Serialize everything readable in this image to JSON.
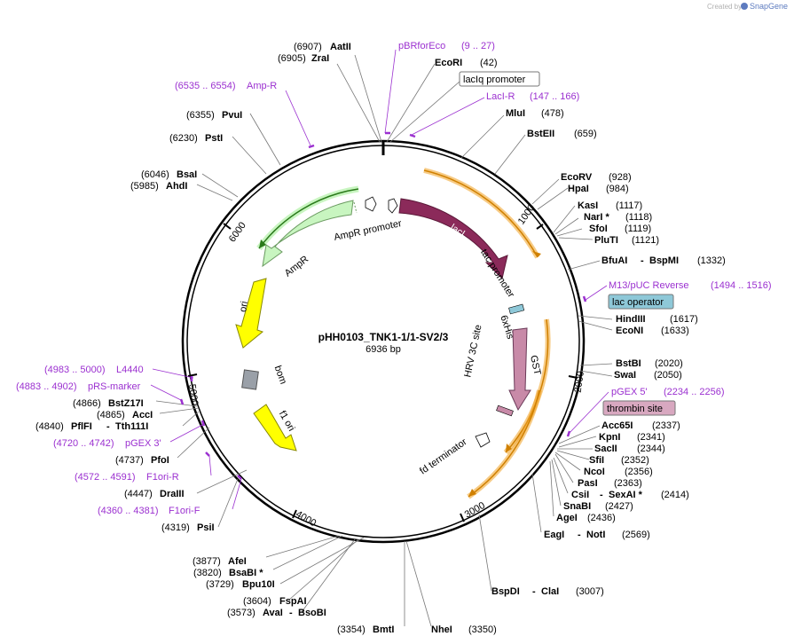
{
  "plasmid": {
    "name": "pHH0103_TNK1-1/1-SV2/3",
    "length": "6936 bp"
  },
  "branding": {
    "created_by": "Created by",
    "app": "SnapGene"
  },
  "ticks": [
    "1000",
    "2000",
    "3000",
    "4000",
    "5000",
    "6000"
  ],
  "colors": {
    "primer": "#9b30d0",
    "laci": "#8b2a5a",
    "amp": "#c8f5c0",
    "ori": "#ffff00",
    "gst": "#c88aa8",
    "orf": "#f0a020",
    "lac_operator": "#8ec8d8",
    "thrombin_site": "#d8a8c0"
  },
  "features": {
    "laci": "lacI",
    "ampr": "AmpR",
    "ampr_promoter": "AmpR promoter",
    "tac_promoter": "tac promoter",
    "his": "6xHis",
    "hrv": "HRV 3C site",
    "gst": "GST",
    "ori": "ori",
    "bom": "bom",
    "f1ori": "f1 ori",
    "fd_terminator": "fd terminator",
    "laciq_promoter": "lacIq promoter",
    "lac_operator": "lac operator",
    "thrombin_site": "thrombin site"
  },
  "enzymes": [
    {
      "pos": "(6907)",
      "name": "AatII"
    },
    {
      "pos": "(6905)",
      "name": "ZraI"
    },
    {
      "pos": "",
      "name": "EcoRI",
      "pos2": "(42)"
    },
    {
      "pos": "",
      "name": "MluI",
      "pos2": "(478)"
    },
    {
      "pos": "",
      "name": "BstEII",
      "pos2": "(659)"
    },
    {
      "pos": "",
      "name": "EcoRV",
      "pos2": "(928)"
    },
    {
      "pos": "",
      "name": "HpaI",
      "pos2": "(984)"
    },
    {
      "pos": "",
      "name": "KasI",
      "pos2": "(1117)"
    },
    {
      "pos": "",
      "name": "NarI *",
      "pos2": "(1118)"
    },
    {
      "pos": "",
      "name": "SfoI",
      "pos2": "(1119)"
    },
    {
      "pos": "",
      "name": "PluTI",
      "pos2": "(1121)"
    },
    {
      "pos": "",
      "name": "BfuAI",
      "name2": "BspMI",
      "pos2": "(1332)"
    },
    {
      "pos": "",
      "name": "HindIII",
      "pos2": "(1617)"
    },
    {
      "pos": "",
      "name": "EcoNI",
      "pos2": "(1633)"
    },
    {
      "pos": "",
      "name": "BstBI",
      "pos2": "(2020)"
    },
    {
      "pos": "",
      "name": "SwaI",
      "pos2": "(2050)"
    },
    {
      "pos": "",
      "name": "Acc65I",
      "pos2": "(2337)"
    },
    {
      "pos": "",
      "name": "KpnI",
      "pos2": "(2341)"
    },
    {
      "pos": "",
      "name": "SacII",
      "pos2": "(2344)"
    },
    {
      "pos": "",
      "name": "SfiI",
      "pos2": "(2352)"
    },
    {
      "pos": "",
      "name": "NcoI",
      "pos2": "(2356)"
    },
    {
      "pos": "",
      "name": "PasI",
      "pos2": "(2363)"
    },
    {
      "pos": "",
      "name": "CsiI",
      "name2": "SexAI *",
      "pos2": "(2414)"
    },
    {
      "pos": "",
      "name": "SnaBI",
      "pos2": "(2427)"
    },
    {
      "pos": "",
      "name": "AgeI",
      "pos2": "(2436)"
    },
    {
      "pos": "",
      "name": "EagI",
      "name2": "NotI",
      "pos2": "(2569)"
    },
    {
      "pos": "",
      "name": "BspDI",
      "name2": "ClaI",
      "pos2": "(3007)"
    },
    {
      "pos": "",
      "name": "NheI",
      "pos2": "(3350)"
    },
    {
      "pos": "(3354)",
      "name": "BmtI"
    },
    {
      "pos": "(3573)",
      "name": "AvaI",
      "name2": "BsoBI"
    },
    {
      "pos": "(3604)",
      "name": "FspAI"
    },
    {
      "pos": "(3729)",
      "name": "Bpu10I"
    },
    {
      "pos": "(3820)",
      "name": "BsaBI *"
    },
    {
      "pos": "(3877)",
      "name": "AfeI"
    },
    {
      "pos": "(4319)",
      "name": "PsiI"
    },
    {
      "pos": "(4447)",
      "name": "DraIII"
    },
    {
      "pos": "(4737)",
      "name": "PfoI"
    },
    {
      "pos": "(4840)",
      "name": "PflFI",
      "name2": "Tth111I"
    },
    {
      "pos": "(4865)",
      "name": "AccI"
    },
    {
      "pos": "(4866)",
      "name": "BstZ17I"
    },
    {
      "pos": "(5985)",
      "name": "AhdI"
    },
    {
      "pos": "(6046)",
      "name": "BsaI"
    },
    {
      "pos": "(6230)",
      "name": "PstI"
    },
    {
      "pos": "(6355)",
      "name": "PvuI"
    }
  ],
  "primers": [
    {
      "name": "pBRforEco",
      "range": "(9 .. 27)"
    },
    {
      "name": "LacI-R",
      "range": "(147 .. 166)"
    },
    {
      "name": "M13/pUC Reverse",
      "range": "(1494 .. 1516)"
    },
    {
      "name": "pGEX 5'",
      "range": "(2234 .. 2256)"
    },
    {
      "name": "F1ori-F",
      "range": "(4360 .. 4381)"
    },
    {
      "name": "F1ori-R",
      "range": "(4572 .. 4591)"
    },
    {
      "name": "pGEX 3'",
      "range": "(4720 .. 4742)"
    },
    {
      "name": "pRS-marker",
      "range": "(4883 .. 4902)"
    },
    {
      "name": "L4440",
      "range": "(4983 .. 5000)"
    },
    {
      "name": "Amp-R",
      "range": "(6535 .. 6554)"
    }
  ]
}
